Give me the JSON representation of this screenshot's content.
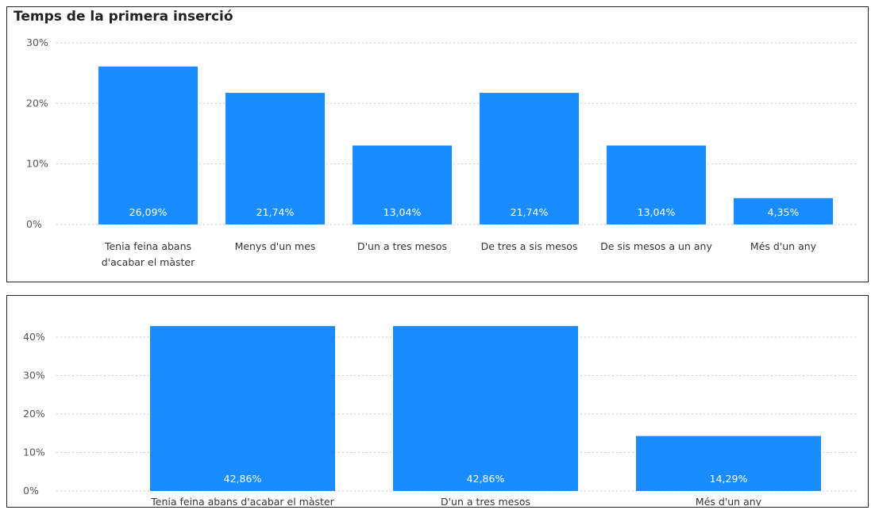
{
  "colors": {
    "bar": "#1a8cff",
    "grid": "#c8c8c8",
    "border": "#222222"
  },
  "chart_data": [
    {
      "type": "bar",
      "title": "Temps de la primera inserció",
      "categories": [
        [
          "Tenia feina abans",
          "d'acabar el màster"
        ],
        [
          "Menys d'un mes"
        ],
        [
          "D'un a tres mesos"
        ],
        [
          "De tres a sis mesos"
        ],
        [
          "De sis mesos a un any"
        ],
        [
          "Més d'un any"
        ]
      ],
      "values": [
        26.09,
        21.74,
        13.04,
        21.74,
        13.04,
        4.35
      ],
      "data_labels": [
        "26,09%",
        "21,74%",
        "13,04%",
        "21,74%",
        "13,04%",
        "4,35%"
      ],
      "yticks": [
        0,
        10,
        20,
        30
      ],
      "ytick_labels": [
        "0%",
        "10%",
        "20%",
        "30%"
      ],
      "ylim": [
        0,
        30
      ],
      "grid": true
    },
    {
      "type": "bar",
      "categories": [
        [
          "Tenia feina abans d'acabar el màster"
        ],
        [
          "D'un a tres mesos"
        ],
        [
          "Més d'un any"
        ]
      ],
      "values": [
        42.86,
        42.86,
        14.29
      ],
      "data_labels": [
        "42,86%",
        "42,86%",
        "14,29%"
      ],
      "yticks": [
        0,
        10,
        20,
        30,
        40
      ],
      "ytick_labels": [
        "0%",
        "10%",
        "20%",
        "30%",
        "40%"
      ],
      "ylim": [
        0,
        40
      ],
      "grid": true
    }
  ]
}
